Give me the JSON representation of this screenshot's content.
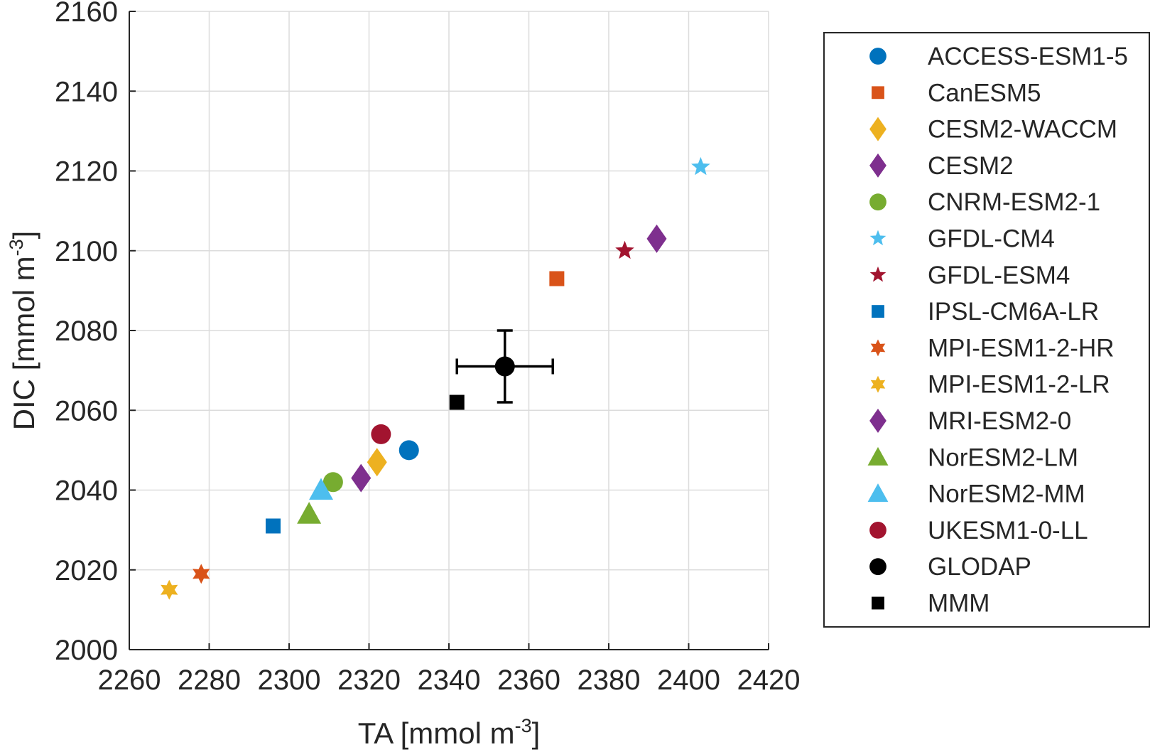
{
  "chart_data": {
    "type": "scatter",
    "xlabel": "TA [mmol m",
    "xlabel_sup": "-3",
    "xlabel_suffix": "]",
    "ylabel": "DIC [mmol m",
    "ylabel_sup": "-3",
    "ylabel_suffix": "]",
    "xlim": [
      2260,
      2420
    ],
    "ylim": [
      2000,
      2160
    ],
    "xticks": [
      2260,
      2280,
      2300,
      2320,
      2340,
      2360,
      2380,
      2400,
      2420
    ],
    "yticks": [
      2000,
      2020,
      2040,
      2060,
      2080,
      2100,
      2120,
      2140,
      2160
    ],
    "grid": true,
    "legend_position": "right",
    "series": [
      {
        "name": "ACCESS-ESM1-5",
        "marker": "circle",
        "color": "#0072BD",
        "x": 2330,
        "y": 2050
      },
      {
        "name": "CanESM5",
        "marker": "square",
        "color": "#D95319",
        "x": 2367,
        "y": 2093
      },
      {
        "name": "CESM2-WACCM",
        "marker": "diamond",
        "color": "#EDB120",
        "x": 2322,
        "y": 2047
      },
      {
        "name": "CESM2",
        "marker": "diamond",
        "color": "#7E2F8E",
        "x": 2392,
        "y": 2103
      },
      {
        "name": "CNRM-ESM2-1",
        "marker": "circle",
        "color": "#77AC30",
        "x": 2311,
        "y": 2042
      },
      {
        "name": "GFDL-CM4",
        "marker": "star5",
        "color": "#4DBEEE",
        "x": 2403,
        "y": 2121
      },
      {
        "name": "GFDL-ESM4",
        "marker": "star5",
        "color": "#A2142F",
        "x": 2384,
        "y": 2100
      },
      {
        "name": "IPSL-CM6A-LR",
        "marker": "square",
        "color": "#0072BD",
        "x": 2296,
        "y": 2031
      },
      {
        "name": "MPI-ESM1-2-HR",
        "marker": "star6",
        "color": "#D95319",
        "x": 2278,
        "y": 2019
      },
      {
        "name": "MPI-ESM1-2-LR",
        "marker": "star6",
        "color": "#EDB120",
        "x": 2270,
        "y": 2015
      },
      {
        "name": "MRI-ESM2-0",
        "marker": "diamond",
        "color": "#7E2F8E",
        "x": 2318,
        "y": 2043
      },
      {
        "name": "NorESM2-LM",
        "marker": "triangle",
        "color": "#77AC30",
        "x": 2305,
        "y": 2034
      },
      {
        "name": "NorESM2-MM",
        "marker": "triangle",
        "color": "#4DBEEE",
        "x": 2308,
        "y": 2040
      },
      {
        "name": "UKESM1-0-LL",
        "marker": "circle",
        "color": "#A2142F",
        "x": 2323,
        "y": 2054
      },
      {
        "name": "GLODAP",
        "marker": "circle",
        "color": "#000000",
        "x": 2354,
        "y": 2071,
        "xerr": 12,
        "yerr": 9
      },
      {
        "name": "MMM",
        "marker": "square",
        "color": "#000000",
        "x": 2342,
        "y": 2062
      }
    ]
  }
}
